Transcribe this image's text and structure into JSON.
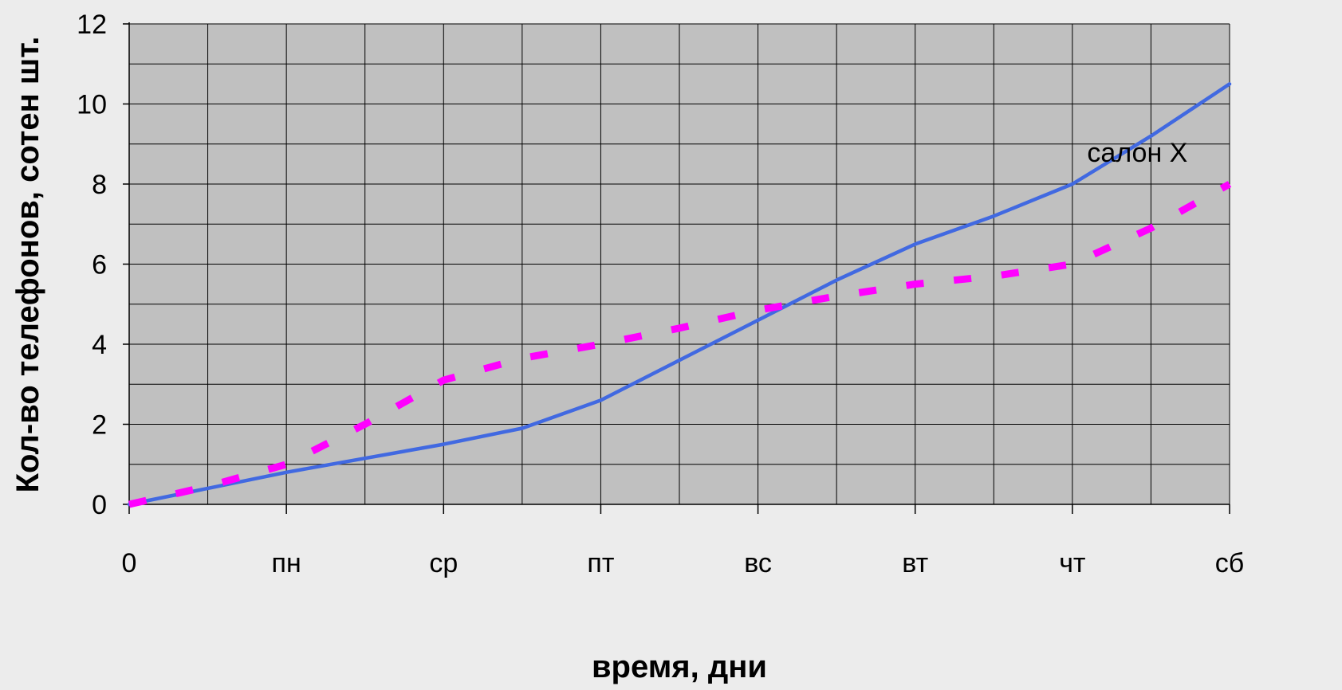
{
  "chart_data": {
    "type": "line",
    "xlabel": "время, дни",
    "ylabel": "Кол-во телефонов, сотен шт.",
    "x_ticks": [
      "0",
      "пн",
      "ср",
      "пт",
      "вс",
      "вт",
      "чт",
      "сб"
    ],
    "y_ticks": [
      "0",
      "2",
      "4",
      "6",
      "8",
      "10",
      "12"
    ],
    "ylim": [
      0,
      12
    ],
    "xlim": [
      0,
      14
    ],
    "grid": true,
    "series": [
      {
        "name": "салон X",
        "color": "#4169e1",
        "style": "solid",
        "x": [
          0,
          1,
          2,
          3,
          4,
          5,
          6,
          7,
          8,
          9,
          10,
          11,
          12,
          13,
          14
        ],
        "y": [
          0.0,
          0.4,
          0.8,
          1.15,
          1.5,
          1.9,
          2.6,
          3.6,
          4.6,
          5.6,
          6.5,
          7.2,
          8.0,
          9.2,
          10.5
        ]
      },
      {
        "color": "#ff00ff",
        "style": "dashed",
        "x": [
          0,
          1,
          2,
          3,
          4,
          5,
          6,
          7,
          8,
          9,
          10,
          11,
          12,
          13,
          14
        ],
        "y": [
          0.0,
          0.45,
          1.0,
          2.0,
          3.1,
          3.65,
          4.0,
          4.4,
          4.85,
          5.2,
          5.5,
          5.7,
          6.0,
          6.9,
          8.0
        ]
      }
    ],
    "annotations": [
      {
        "text": "салон X",
        "x": 13.0,
        "y": 8.8
      }
    ]
  }
}
